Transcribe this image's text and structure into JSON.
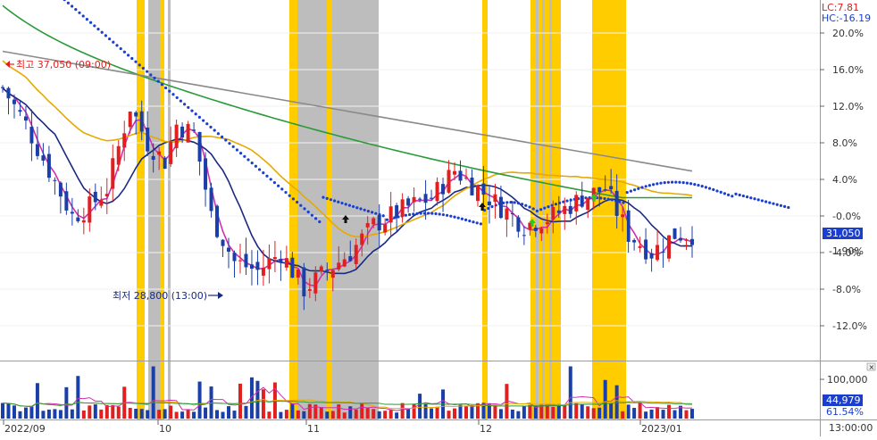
{
  "chart_data": {
    "type": "candlestick",
    "y_axis": {
      "ticks": [
        "20.0%",
        "16.0%",
        "12.0%",
        "8.0%",
        "4.0%",
        "-0.0%",
        "-4.0%",
        "-8.0%",
        "-12.0%"
      ],
      "tick_values": [
        20,
        16,
        12,
        8,
        4,
        0,
        -4,
        -8,
        -12
      ],
      "range": [
        -16,
        24
      ]
    },
    "legend": {
      "lc": "LC:7.81",
      "hc": "HC:-16.19"
    },
    "annotations": {
      "high_label": "최고 37,050 (09:00)",
      "low_label": "최저 28,800 (13:00)"
    },
    "current_price_label": "31,050",
    "current_change_label": "-1.90%",
    "x_axis": {
      "labels": [
        "2022/09",
        "10",
        "11",
        "12",
        "2023/01"
      ],
      "time_label": "13:00:00"
    },
    "volume": {
      "ticks": [
        "100,000"
      ],
      "current_label": "44,979",
      "percent_label": "61.54%"
    },
    "colors": {
      "up": "#e02020",
      "down": "#1a3fa8",
      "highlight_yellow": "#ffcc00",
      "highlight_gray": "#bdbdbd",
      "ma5": "#d030b0",
      "ma20": "#1a2a80",
      "ma60": "#e8a800",
      "ma120": "#2a9a3a",
      "ma240": "#8a8a8a",
      "dotted": "#1a3fd0",
      "price_box": "#1a3fd0"
    }
  }
}
